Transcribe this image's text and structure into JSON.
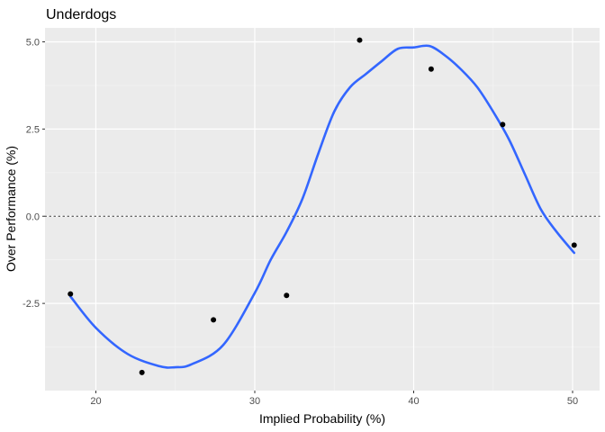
{
  "chart_data": {
    "type": "scatter",
    "title": "Underdogs",
    "xlabel": "Implied Probability (%)",
    "ylabel": "Over Performance (%)",
    "xlim": [
      16.8,
      51.7
    ],
    "ylim": [
      -5.0,
      5.4
    ],
    "x_ticks": [
      20,
      30,
      40,
      50
    ],
    "x_tick_labels": [
      "20",
      "30",
      "40",
      "50"
    ],
    "y_ticks": [
      -2.5,
      0,
      2.5,
      5
    ],
    "y_tick_labels": [
      "-2.5",
      "0.0",
      "2.5",
      "5.0"
    ],
    "grid": true,
    "reference_line": {
      "y": 0,
      "style": "dotted",
      "color": "#333333"
    },
    "colors": {
      "panel_background": "#ebebeb",
      "grid_major": "#ffffff",
      "grid_minor": "#f5f5f5",
      "points": "#000000",
      "smooth_line": "#3366ff"
    },
    "points": {
      "x": [
        18.4,
        22.9,
        27.4,
        32.0,
        36.6,
        41.1,
        45.6,
        50.1
      ],
      "y": [
        -2.23,
        -4.48,
        -2.97,
        -2.27,
        5.05,
        4.22,
        2.63,
        -0.83
      ]
    },
    "smooth_line": {
      "x": [
        18.4,
        20,
        22,
        24,
        25,
        26,
        28,
        30,
        31,
        32,
        33,
        34,
        35,
        36,
        37,
        38,
        39,
        40,
        41,
        42,
        43,
        44,
        45,
        46,
        47,
        48,
        49,
        50.1
      ],
      "y": [
        -2.3,
        -3.2,
        -3.95,
        -4.3,
        -4.33,
        -4.25,
        -3.7,
        -2.2,
        -1.25,
        -0.45,
        0.5,
        1.8,
        3.0,
        3.7,
        4.08,
        4.45,
        4.8,
        4.84,
        4.88,
        4.6,
        4.2,
        3.7,
        3.0,
        2.2,
        1.2,
        0.2,
        -0.45,
        -1.05
      ]
    }
  }
}
